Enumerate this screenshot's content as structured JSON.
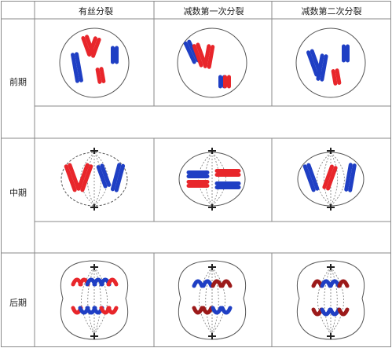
{
  "header": {
    "col_mitosis": "有丝分裂",
    "col_meiosis1": "减数第一次分裂",
    "col_meiosis2": "减数第二次分裂"
  },
  "rows": {
    "prophase": "前期",
    "metaphase": "中期",
    "anaphase": "后期"
  },
  "colors": {
    "red": "#e8262b",
    "blue": "#1f3fc4",
    "darkred": "#9c1a1a",
    "grid": "#8a8a8a",
    "spindle": "#777777"
  }
}
